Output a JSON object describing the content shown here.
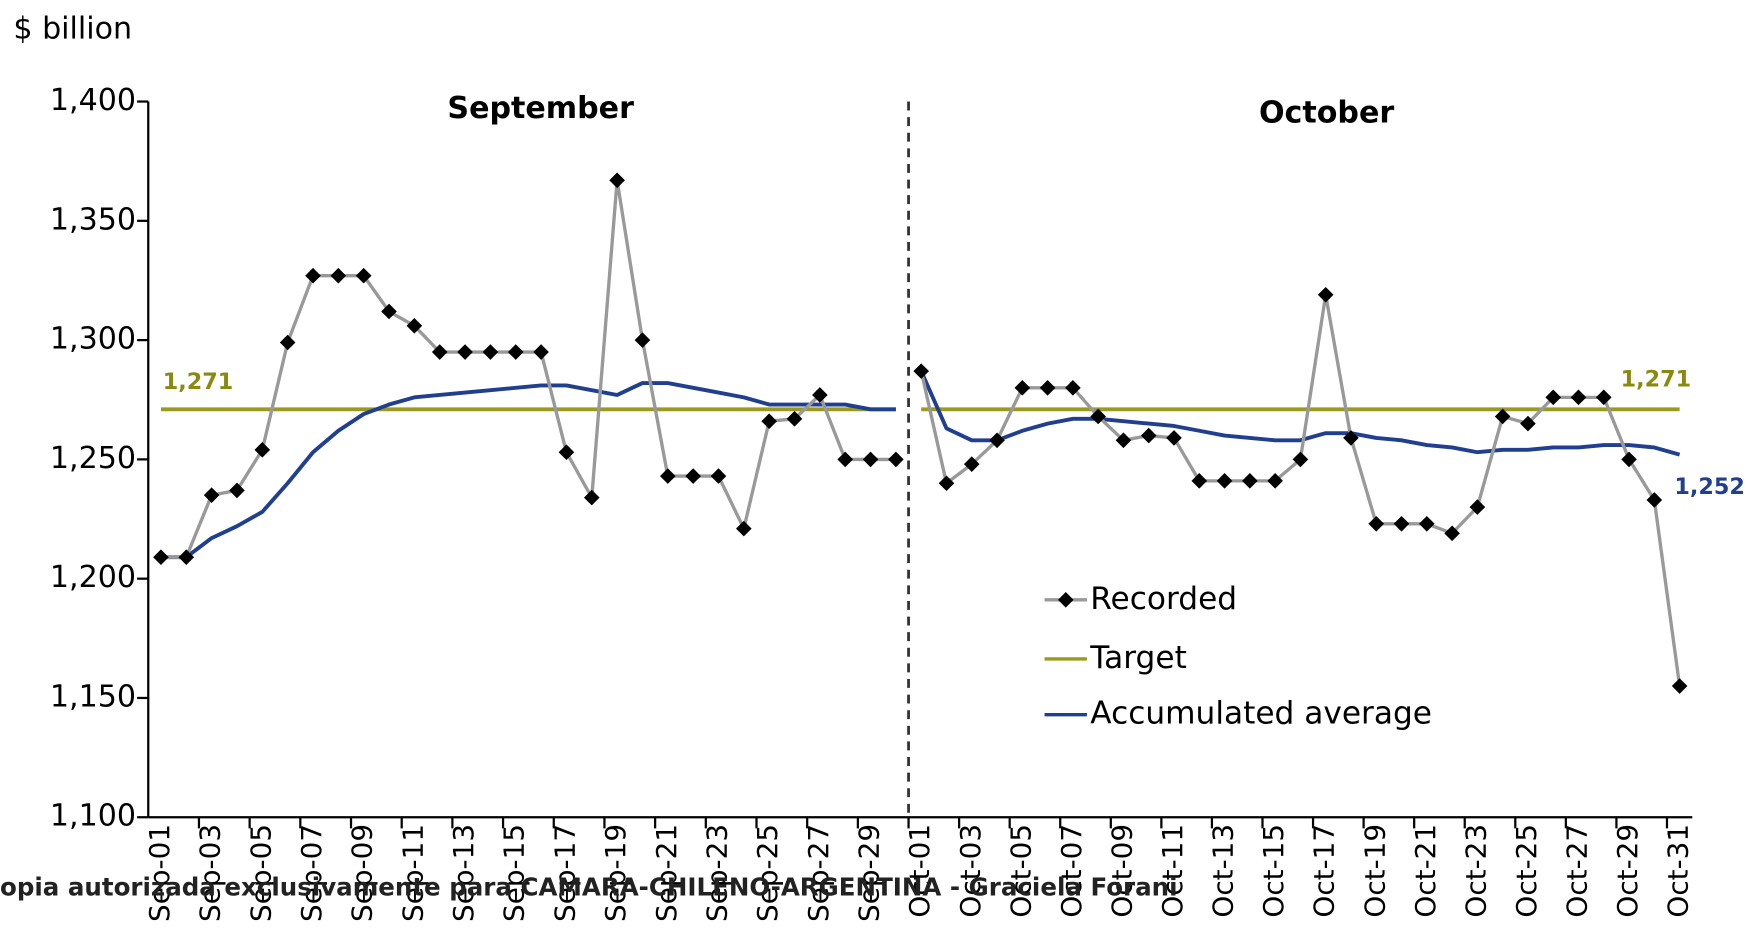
{
  "watermark": "opia autorizada exclusivamente para CAMARA-CHILENO-ARGENTINA - Graciela Forani",
  "chart_data": [
    {
      "type": "line",
      "ylabel": "$ billion",
      "title": "September",
      "categories": [
        "Sep-01",
        null,
        "Sep-03",
        null,
        "Sep-05",
        null,
        "Sep-07",
        null,
        "Sep-09",
        null,
        "Sep-11",
        null,
        "Sep-13",
        null,
        "Sep-15",
        null,
        "Sep-17",
        null,
        "Sep-19",
        null,
        "Sep-21",
        null,
        "Sep-23",
        null,
        "Sep-25",
        null,
        "Sep-27",
        null,
        "Sep-29",
        null
      ],
      "ylim": [
        1100,
        1400
      ],
      "yticks": [
        {
          "value": 1100,
          "label": "1,100"
        },
        {
          "value": 1150,
          "label": "1,150"
        },
        {
          "value": 1200,
          "label": "1,200"
        },
        {
          "value": 1250,
          "label": "1,250"
        },
        {
          "value": 1300,
          "label": "1,300"
        },
        {
          "value": 1350,
          "label": "1,350"
        },
        {
          "value": 1400,
          "label": "1,400"
        }
      ],
      "annotations": [
        "1,271"
      ],
      "series": [
        {
          "color": "#999999",
          "marker": "diamond",
          "values": [
            1209,
            1209,
            1235,
            1237,
            1254,
            1299,
            1327,
            1327,
            1327,
            1312,
            1306,
            1295,
            1295,
            1295,
            1295,
            1295,
            1253,
            1234,
            1367,
            1300,
            1243,
            1243,
            1243,
            1221,
            1266,
            1267,
            1277,
            1250,
            1250,
            1250
          ]
        },
        {
          "color": "#9a9a1f",
          "values": [
            1271,
            1271,
            1271,
            1271,
            1271,
            1271,
            1271,
            1271,
            1271,
            1271,
            1271,
            1271,
            1271,
            1271,
            1271,
            1271,
            1271,
            1271,
            1271,
            1271,
            1271,
            1271,
            1271,
            1271,
            1271,
            1271,
            1271,
            1271,
            1271,
            1271
          ]
        },
        {
          "color": "#203f8f",
          "values": [
            1209,
            1209,
            1217,
            1222,
            1228,
            1240,
            1253,
            1262,
            1269,
            1273,
            1276,
            1277,
            1278,
            1279,
            1280,
            1281,
            1281,
            1279,
            1277,
            1282,
            1282,
            1280,
            1278,
            1276,
            1273,
            1273,
            1273,
            1273,
            1271,
            1271
          ]
        }
      ]
    },
    {
      "type": "line",
      "title": "October",
      "categories": [
        "Oct-01",
        null,
        "Oct-03",
        null,
        "Oct-05",
        null,
        "Oct-07",
        null,
        "Oct-09",
        null,
        "Oct-11",
        null,
        "Oct-13",
        null,
        "Oct-15",
        null,
        "Oct-17",
        null,
        "Oct-19",
        null,
        "Oct-21",
        null,
        "Oct-23",
        null,
        "Oct-25",
        null,
        "Oct-27",
        null,
        "Oct-29",
        null,
        "Oct-31"
      ],
      "ylim": [
        1100,
        1400
      ],
      "annotations": [
        "1,271",
        "1,252"
      ],
      "series": [
        {
          "name": "Recorded",
          "color": "#999999",
          "marker": "diamond",
          "values": [
            1287,
            1240,
            1248,
            1258,
            1280,
            1280,
            1280,
            1268,
            1258,
            1260,
            1259,
            1241,
            1241,
            1241,
            1241,
            1250,
            1319,
            1259,
            1223,
            1223,
            1223,
            1219,
            1230,
            1268,
            1265,
            1276,
            1276,
            1276,
            1250,
            1233,
            1155
          ]
        },
        {
          "name": "Target",
          "color": "#9a9a1f",
          "values": [
            1271,
            1271,
            1271,
            1271,
            1271,
            1271,
            1271,
            1271,
            1271,
            1271,
            1271,
            1271,
            1271,
            1271,
            1271,
            1271,
            1271,
            1271,
            1271,
            1271,
            1271,
            1271,
            1271,
            1271,
            1271,
            1271,
            1271,
            1271,
            1271,
            1271,
            1271
          ]
        },
        {
          "name": "Accumulated average",
          "color": "#203f8f",
          "values": [
            1287,
            1263,
            1258,
            1258,
            1262,
            1265,
            1267,
            1267,
            1266,
            1265,
            1264,
            1262,
            1260,
            1259,
            1258,
            1258,
            1261,
            1261,
            1259,
            1258,
            1256,
            1255,
            1253,
            1254,
            1254,
            1255,
            1255,
            1256,
            1256,
            1255,
            1252
          ]
        }
      ]
    }
  ]
}
